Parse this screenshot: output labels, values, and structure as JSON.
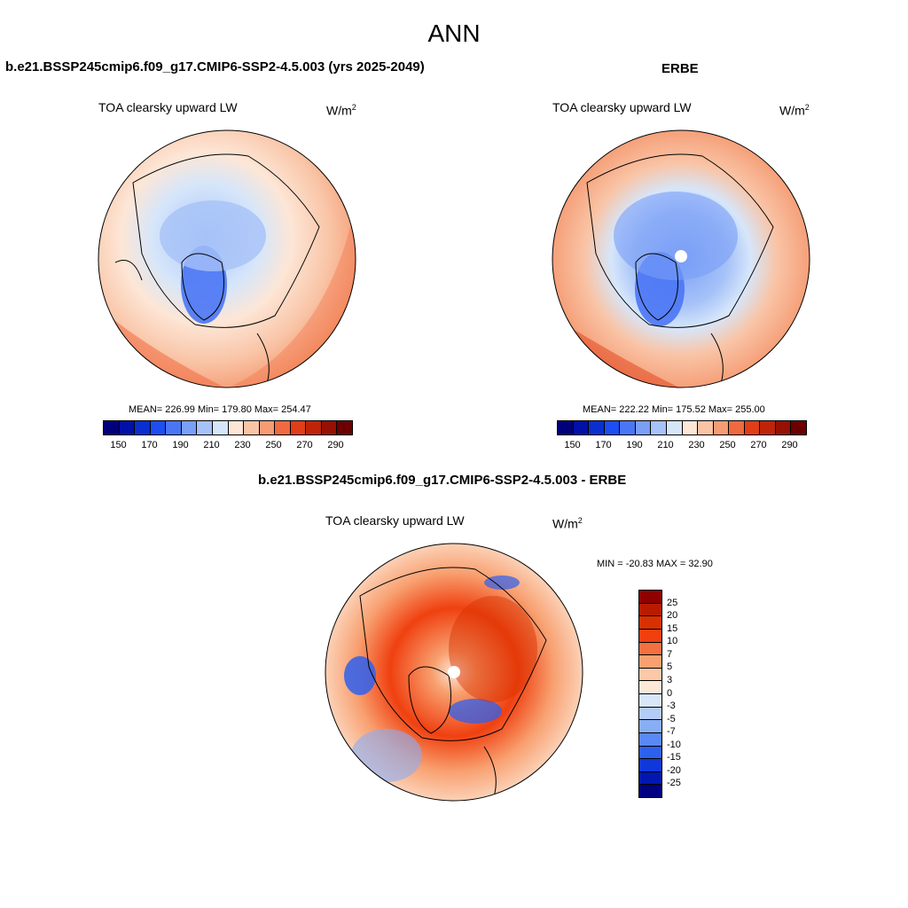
{
  "figure": {
    "season_title": "ANN"
  },
  "panels": [
    {
      "title": "b.e21.BSSP245cmip6.f09_g17.CMIP6-SSP2-4.5.003 (yrs 2025-2049)",
      "variable": "TOA clearsky upward LW",
      "units_base": "W/m",
      "units_exp": "2",
      "stats": "MEAN= 226.99  Min= 179.80  Max= 254.47"
    },
    {
      "title": "ERBE",
      "variable": "TOA clearsky upward LW",
      "units_base": "W/m",
      "units_exp": "2",
      "stats": "MEAN= 222.22  Min= 175.52  Max= 255.00"
    },
    {
      "title": "b.e21.BSSP245cmip6.f09_g17.CMIP6-SSP2-4.5.003 - ERBE",
      "variable": "TOA clearsky upward LW",
      "units_base": "W/m",
      "units_exp": "2",
      "stats": "MIN = -20.83 MAX =  32.90"
    }
  ],
  "colorbars": {
    "absolute": {
      "colors": [
        "#00007a",
        "#0010a8",
        "#0a2fd0",
        "#1d4ef2",
        "#4a76f5",
        "#7a9ff6",
        "#a6c2f8",
        "#d6e6fa",
        "#fde6d6",
        "#f9c4a6",
        "#f59c74",
        "#f06a40",
        "#e03e16",
        "#c02408",
        "#961004",
        "#6c0000"
      ],
      "tick_labels": [
        "150",
        "170",
        "190",
        "210",
        "230",
        "250",
        "270",
        "290"
      ]
    },
    "difference": {
      "colors": [
        "#900000",
        "#b81c00",
        "#d83000",
        "#f04010",
        "#f47040",
        "#f8a070",
        "#fbc8a8",
        "#fde8d8",
        "#d8e6f8",
        "#b4cdf8",
        "#88aef6",
        "#5a88f4",
        "#2e60ee",
        "#1038d8",
        "#0018b0",
        "#000080"
      ],
      "tick_labels": [
        "25",
        "20",
        "15",
        "10",
        "7",
        "5",
        "3",
        "0",
        "-3",
        "-5",
        "-7",
        "-10",
        "-15",
        "-20",
        "-25"
      ]
    }
  },
  "map_data": {
    "projection": "north polar stereographic",
    "panel_1_field": {
      "mean": 226.99,
      "min": 179.8,
      "max": 254.47
    },
    "panel_2_field": {
      "mean": 222.22,
      "min": 175.52,
      "max": 255.0
    },
    "panel_3_field": {
      "min": -20.83,
      "max": 32.9
    }
  }
}
